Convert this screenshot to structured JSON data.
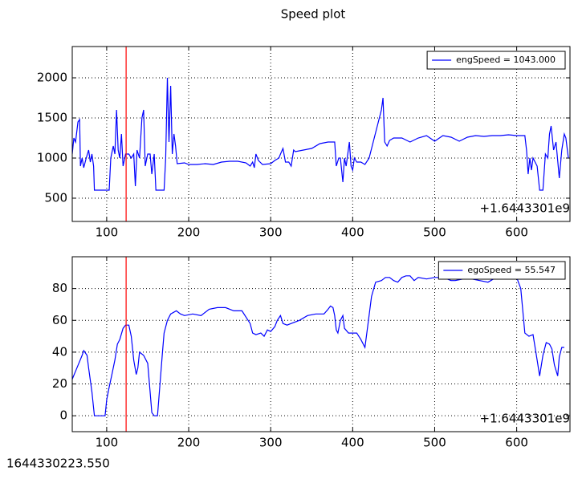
{
  "title": "Speed plot",
  "footer": "1644330223.550",
  "chart_data": [
    {
      "type": "line",
      "offset_text": "+1.6443301e9",
      "xlim": [
        58,
        665
      ],
      "ylim": [
        210,
        2390
      ],
      "xticks": [
        100,
        200,
        300,
        400,
        500,
        600
      ],
      "yticks": [
        500,
        1000,
        1500,
        2000
      ],
      "grid": true,
      "legend": "upper right",
      "cursor_x": 123.7,
      "cursor_color": "#ff0000",
      "x": [
        58,
        60,
        62,
        65,
        67,
        68,
        70,
        72,
        75,
        78,
        80,
        82,
        84,
        85,
        90,
        95,
        100,
        103,
        105,
        108,
        110,
        112,
        114,
        116,
        118,
        120,
        123,
        127,
        130,
        133,
        135,
        137,
        140,
        143,
        145,
        147,
        150,
        153,
        155,
        158,
        160,
        165,
        170,
        172,
        174,
        176,
        178,
        180,
        182,
        184,
        186,
        195,
        200,
        210,
        220,
        230,
        240,
        250,
        260,
        270,
        275,
        278,
        280,
        282,
        285,
        290,
        300,
        305,
        310,
        312,
        315,
        318,
        322,
        325,
        328,
        330,
        340,
        350,
        360,
        370,
        378,
        380,
        383,
        385,
        388,
        390,
        392,
        394,
        396,
        398,
        400,
        402,
        405,
        410,
        415,
        420,
        425,
        430,
        435,
        437,
        439,
        442,
        445,
        450,
        460,
        470,
        480,
        490,
        500,
        510,
        520,
        530,
        540,
        550,
        560,
        570,
        580,
        590,
        600,
        610,
        612,
        614,
        616,
        618,
        620,
        625,
        628,
        632,
        635,
        638,
        640,
        642,
        645,
        648,
        652,
        655,
        658,
        660,
        663
      ],
      "series": [
        {
          "name": "engSpeed = 1043.000",
          "color": "#0000ff",
          "values": [
            1050,
            1250,
            1200,
            1450,
            1480,
            900,
            1000,
            880,
            1000,
            1100,
            950,
            1050,
            900,
            600,
            600,
            600,
            600,
            600,
            1000,
            1150,
            1050,
            1600,
            1100,
            1000,
            1300,
            900,
            1050,
            1050,
            1000,
            1050,
            650,
            1100,
            1000,
            1500,
            1600,
            900,
            1050,
            1050,
            800,
            1050,
            600,
            600,
            600,
            1000,
            2000,
            1200,
            1900,
            1050,
            1300,
            1150,
            930,
            940,
            920,
            920,
            930,
            920,
            950,
            960,
            960,
            940,
            900,
            950,
            880,
            1050,
            970,
            920,
            930,
            970,
            1000,
            1050,
            1120,
            950,
            950,
            900,
            1100,
            1080,
            1100,
            1120,
            1180,
            1200,
            1200,
            900,
            1000,
            1000,
            700,
            1000,
            900,
            1050,
            1200,
            900,
            850,
            1000,
            950,
            950,
            920,
            1000,
            1200,
            1400,
            1600,
            1750,
            1200,
            1150,
            1220,
            1250,
            1250,
            1200,
            1250,
            1280,
            1210,
            1280,
            1260,
            1210,
            1260,
            1280,
            1270,
            1280,
            1280,
            1290,
            1280,
            1280,
            1100,
            800,
            1000,
            850,
            1000,
            900,
            600,
            600,
            1050,
            1000,
            1300,
            1400,
            1100,
            1200,
            750,
            1100,
            1300,
            1250,
            1000
          ]
        }
      ]
    },
    {
      "type": "line",
      "offset_text": "+1.6443301e9",
      "xlim": [
        58,
        665
      ],
      "ylim": [
        -10,
        100
      ],
      "xticks": [
        100,
        200,
        300,
        400,
        500,
        600
      ],
      "yticks": [
        0,
        20,
        40,
        60,
        80
      ],
      "grid": true,
      "legend": "upper right",
      "cursor_x": 123.7,
      "cursor_color": "#ff0000",
      "x": [
        58,
        62,
        66,
        70,
        72,
        76,
        78,
        82,
        85,
        95,
        98,
        100,
        103,
        106,
        110,
        113,
        116,
        120,
        123,
        127,
        130,
        133,
        136,
        138,
        140,
        145,
        150,
        153,
        155,
        158,
        162,
        165,
        168,
        170,
        174,
        178,
        185,
        190,
        195,
        205,
        215,
        225,
        235,
        245,
        255,
        265,
        270,
        275,
        278,
        282,
        288,
        292,
        296,
        300,
        305,
        308,
        312,
        315,
        320,
        325,
        335,
        345,
        355,
        365,
        370,
        373,
        376,
        378,
        380,
        382,
        385,
        388,
        390,
        395,
        405,
        410,
        415,
        418,
        423,
        428,
        435,
        440,
        445,
        450,
        455,
        460,
        465,
        470,
        475,
        480,
        490,
        500,
        510,
        515,
        520,
        525,
        535,
        545,
        555,
        565,
        575,
        585,
        590,
        595,
        600,
        605,
        610,
        615,
        620,
        625,
        628,
        632,
        636,
        640,
        643,
        646,
        650,
        652,
        655,
        658
      ],
      "series": [
        {
          "name": "egoSpeed = 55.547",
          "color": "#0000ff",
          "values": [
            23,
            28,
            33,
            38,
            41,
            38,
            30,
            15,
            0,
            0,
            0,
            10,
            18,
            25,
            35,
            45,
            48,
            55,
            57,
            57,
            50,
            35,
            26,
            30,
            40,
            38,
            33,
            15,
            2,
            0,
            0,
            20,
            40,
            52,
            60,
            64,
            66,
            64,
            63,
            64,
            63,
            67,
            68,
            68,
            66,
            66,
            62,
            58,
            52,
            51,
            52,
            50,
            54,
            53,
            56,
            60,
            63,
            58,
            57,
            58,
            60,
            63,
            64,
            64,
            67,
            69,
            68,
            63,
            54,
            52,
            60,
            63,
            55,
            52,
            52,
            48,
            43,
            55,
            75,
            84,
            85,
            87,
            87,
            85,
            84,
            87,
            88,
            88,
            85,
            87,
            86,
            87,
            87,
            86,
            85,
            85,
            86,
            86,
            85,
            84,
            87,
            88,
            87,
            86,
            87,
            80,
            52,
            50,
            51,
            35,
            25,
            38,
            46,
            45,
            42,
            32,
            25,
            37,
            43,
            43
          ]
        }
      ]
    }
  ]
}
